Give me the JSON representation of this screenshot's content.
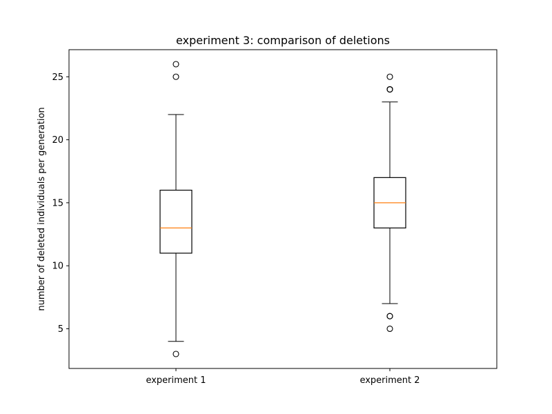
{
  "chart_data": {
    "type": "box",
    "title": "experiment 3: comparison of deletions",
    "xlabel": "",
    "ylabel": "number of deleted individuals per generation",
    "ylim": [
      1.85,
      27.15
    ],
    "yticks": [
      5,
      10,
      15,
      20,
      25
    ],
    "grid": false,
    "categories": [
      "experiment 1",
      "experiment 2"
    ],
    "boxes": [
      {
        "category": "experiment 1",
        "whisker_low": 4,
        "q1": 11,
        "median": 13,
        "q3": 16,
        "whisker_high": 22,
        "outliers": [
          3,
          25,
          26
        ]
      },
      {
        "category": "experiment 2",
        "whisker_low": 7,
        "q1": 13,
        "median": 15,
        "q3": 17,
        "whisker_high": 23,
        "outliers": [
          5,
          6,
          6,
          24,
          24,
          24,
          25
        ]
      }
    ],
    "colors": {
      "box": "#000000",
      "median": "#ff7f0e",
      "outlier": "#000000"
    }
  }
}
